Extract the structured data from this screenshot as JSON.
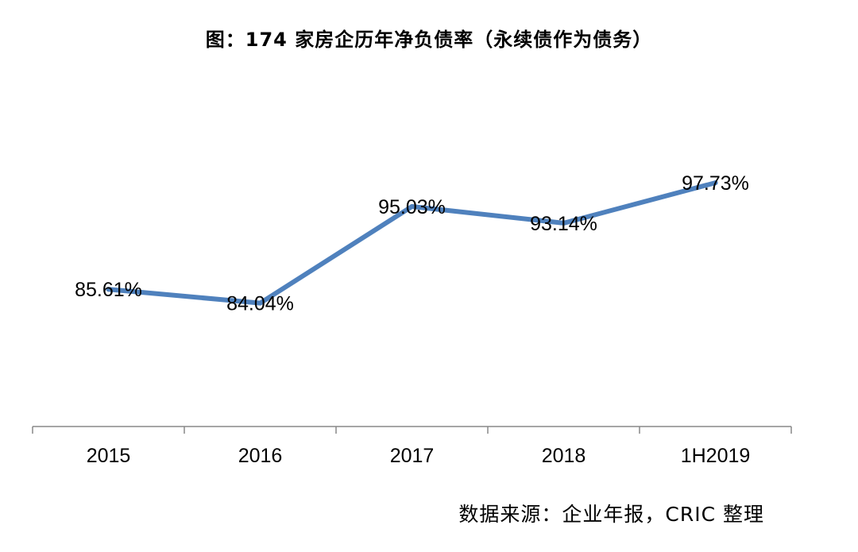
{
  "chart_data": {
    "type": "line",
    "title": "图：174 家房企历年净负债率（永续债作为债务）",
    "categories": [
      "2015",
      "2016",
      "2017",
      "2018",
      "1H2019"
    ],
    "series": [
      {
        "values": [
          85.61,
          84.04,
          95.03,
          93.14,
          97.73
        ],
        "data_labels": [
          "85.61%",
          "84.04%",
          "95.03%",
          "93.14%",
          "97.73%"
        ],
        "color": "#4f81bd"
      }
    ],
    "xlabel": "",
    "ylabel": "",
    "ylim": [
      70,
      100
    ],
    "grid": false,
    "legend": "none",
    "source": "数据来源：企业年报，CRIC 整理"
  }
}
